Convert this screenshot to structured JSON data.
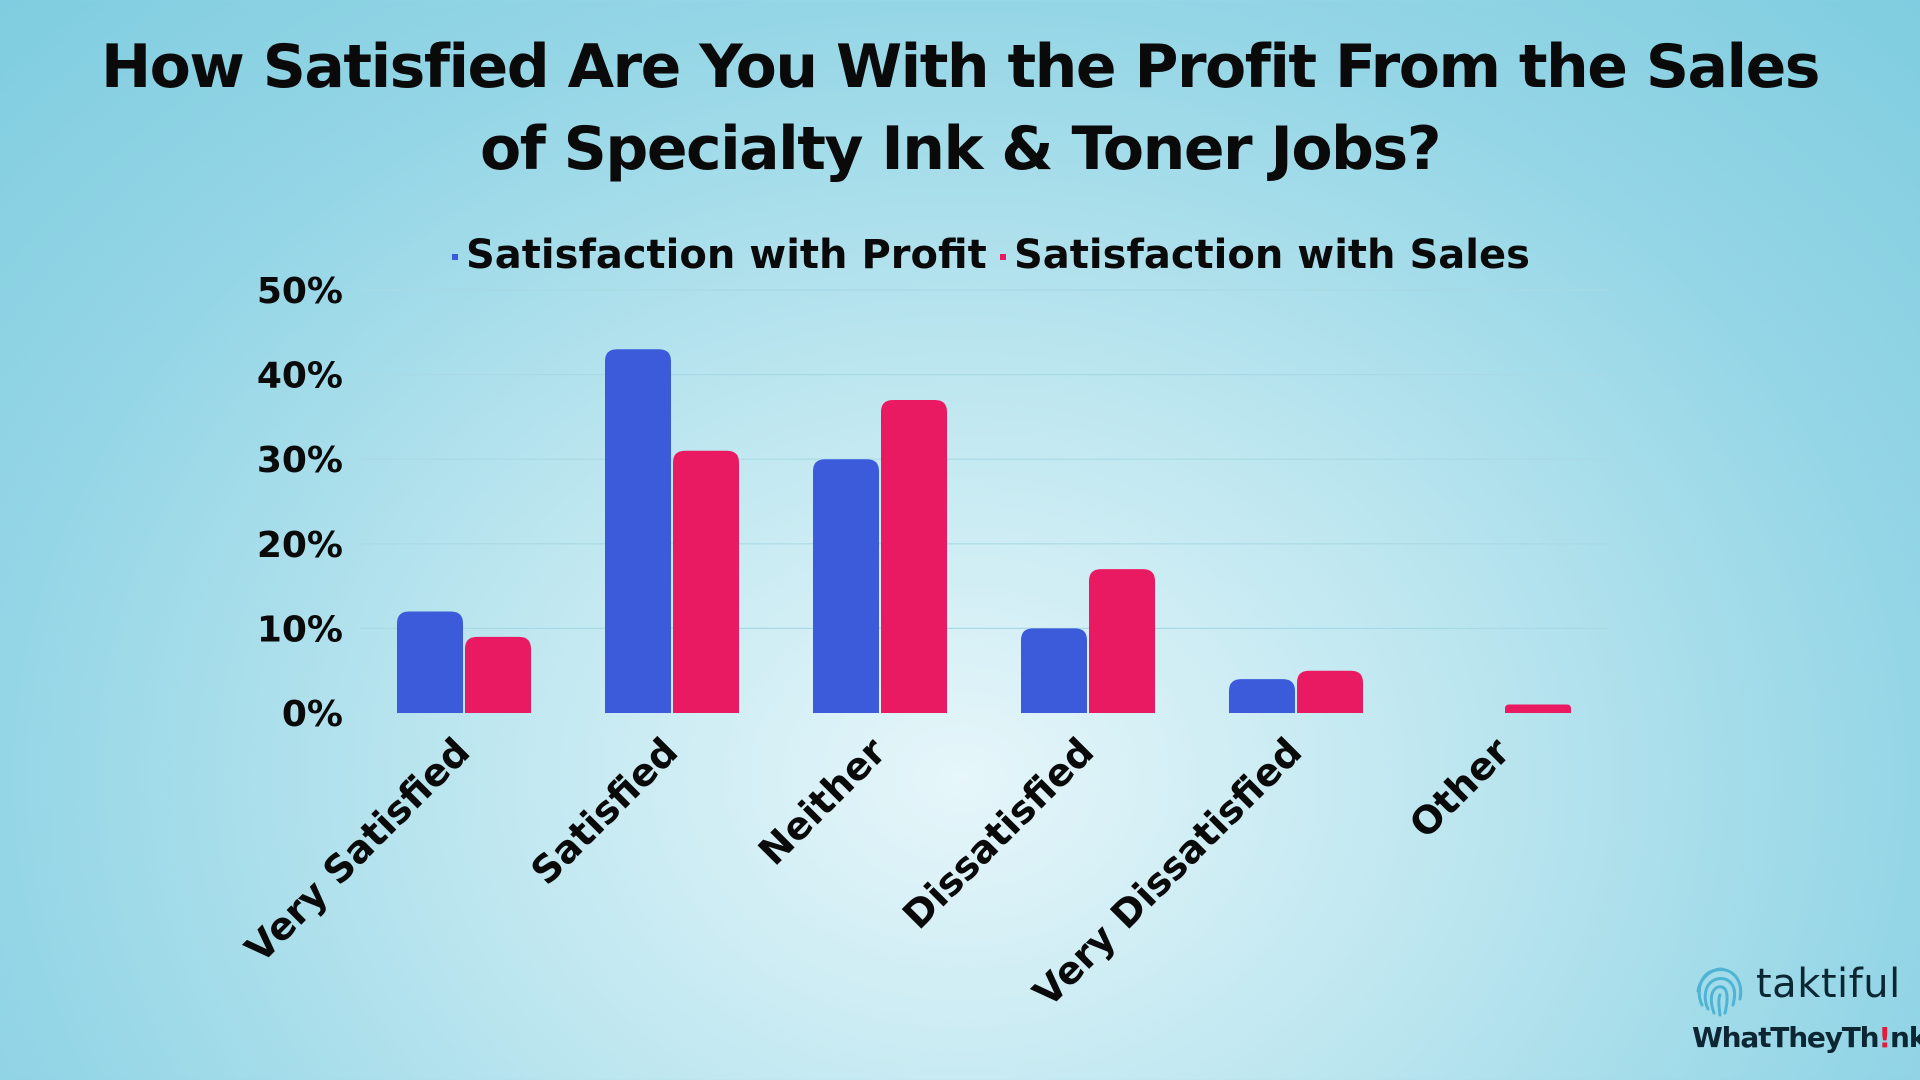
{
  "chart_data": {
    "type": "bar",
    "title_lines": [
      "How Satisfied Are You With the Profit From the Sales",
      "of Specialty Ink & Toner Jobs?"
    ],
    "categories": [
      "Very Satisfied",
      "Satisfied",
      "Neither",
      "Dissatisfied",
      "Very Dissatisfied",
      "Other"
    ],
    "series": [
      {
        "name": "Satisfaction with Profit",
        "color": "#3b5bdb",
        "values": [
          12,
          43,
          30,
          10,
          4,
          0
        ]
      },
      {
        "name": "Satisfaction with Sales",
        "color": "#ea1a62",
        "values": [
          9,
          31,
          37,
          17,
          5,
          1
        ]
      }
    ],
    "ylim": [
      0,
      50
    ],
    "yticks": [
      0,
      10,
      20,
      30,
      40,
      50
    ],
    "ytick_labels": [
      "0%",
      "10%",
      "20%",
      "30%",
      "40%",
      "50%"
    ],
    "grid": true,
    "legend_position": "top-center"
  },
  "branding": {
    "logo_primary": "taktiful",
    "logo_secondary_parts": [
      "WhatTheyTh",
      "!",
      "nk"
    ],
    "logo_icon": "fingerprint-icon"
  }
}
